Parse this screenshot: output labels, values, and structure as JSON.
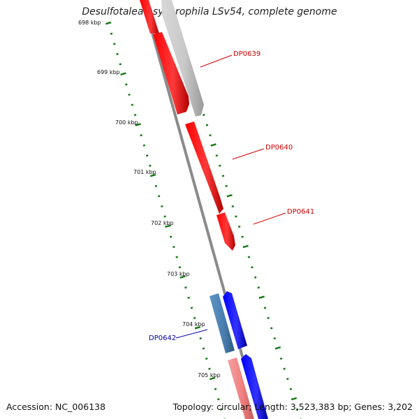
{
  "title": "Desulfotalea psychrophila LSv54, complete genome",
  "footer": {
    "accession": "Accession: NC_006138",
    "summary": "Topology: circular; Length: 3,523,383 bp; Genes: 3,202"
  },
  "ticks": [
    {
      "label": "698 kbp"
    },
    {
      "label": "699 kbp"
    },
    {
      "label": "700 kbp"
    },
    {
      "label": "701 kbp"
    },
    {
      "label": "702 kbp"
    },
    {
      "label": "703 kbp"
    },
    {
      "label": "704 kbp"
    },
    {
      "label": "705 kbp"
    }
  ],
  "gene_labels": [
    {
      "name": "DP0639",
      "color": "#cc0000"
    },
    {
      "name": "DP0640",
      "color": "#cc0000"
    },
    {
      "name": "DP0641",
      "color": "#cc0000"
    },
    {
      "name": "DP0642",
      "color": "#0000aa"
    }
  ],
  "colors": {
    "backbone": "#808080",
    "tick_marks": "#1a7a1a",
    "forward_cds": "#ff0000",
    "reverse_cds": "#0000ff",
    "rna_forward": "#c0c0c0",
    "light_red": "#f08080",
    "steel_blue": "#4682b4"
  }
}
